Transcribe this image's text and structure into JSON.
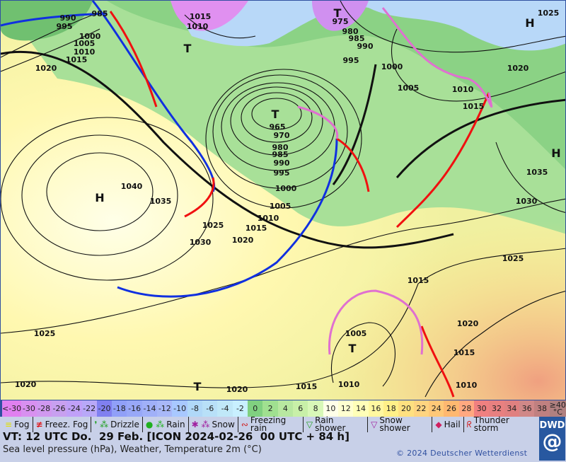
{
  "header": {
    "valid_time": "VT: 12 UTC Do.  29 Feb. [ICON 2024-02-26  00 UTC + 84 h]",
    "subtitle": "Sea level pressure (hPa), Weather, Temperature 2m (°C)",
    "copyright": "© 2024 Deutscher Wetterdienst",
    "logo": "DWD"
  },
  "temperature_scale": [
    {
      "label": "<-30",
      "color": "#e080f0"
    },
    {
      "label": "-30",
      "color": "#d890f0"
    },
    {
      "label": "-28",
      "color": "#d098f0"
    },
    {
      "label": "-26",
      "color": "#c8a0f0"
    },
    {
      "label": "-24",
      "color": "#c0a0f8"
    },
    {
      "label": "-22",
      "color": "#b8a8f8"
    },
    {
      "label": "-20",
      "color": "#8080f0"
    },
    {
      "label": "-18",
      "color": "#90a0f8"
    },
    {
      "label": "-16",
      "color": "#98a8f8"
    },
    {
      "label": "-14",
      "color": "#a0b0f8"
    },
    {
      "label": "-12",
      "color": "#a8b8f8"
    },
    {
      "label": "-10",
      "color": "#a8c8ff"
    },
    {
      "label": "-8",
      "color": "#b0d8f8"
    },
    {
      "label": "-6",
      "color": "#b8e0f8"
    },
    {
      "label": "-4",
      "color": "#c0e8f8"
    },
    {
      "label": "-2",
      "color": "#c8f0ff"
    },
    {
      "label": "0",
      "color": "#80d080"
    },
    {
      "label": "2",
      "color": "#a0e090"
    },
    {
      "label": "4",
      "color": "#b8e8a0"
    },
    {
      "label": "6",
      "color": "#c8f0a8"
    },
    {
      "label": "8",
      "color": "#d8f8b8"
    },
    {
      "label": "10",
      "color": "#ffffe8"
    },
    {
      "label": "12",
      "color": "#ffffd0"
    },
    {
      "label": "14",
      "color": "#ffffb8"
    },
    {
      "label": "16",
      "color": "#fff8a0"
    },
    {
      "label": "18",
      "color": "#fff088"
    },
    {
      "label": "20",
      "color": "#ffe080"
    },
    {
      "label": "22",
      "color": "#ffd480"
    },
    {
      "label": "24",
      "color": "#ffc878"
    },
    {
      "label": "26",
      "color": "#ffb870"
    },
    {
      "label": "28",
      "color": "#ffa880"
    },
    {
      "label": "30",
      "color": "#f08080"
    },
    {
      "label": "32",
      "color": "#e88080"
    },
    {
      "label": "34",
      "color": "#e08080"
    },
    {
      "label": "36",
      "color": "#d08888"
    },
    {
      "label": "38",
      "color": "#c08080"
    },
    {
      "label": "≥40 °C",
      "color": "#b08080"
    }
  ],
  "weather_legend": [
    {
      "label": "Fog",
      "icon": "fog-icon",
      "symbol": "≡",
      "color": "#e0e000"
    },
    {
      "label": "Freez. Fog",
      "icon": "freezing-fog-icon",
      "symbol": "≢",
      "color": "#e00000"
    },
    {
      "label": "Drizzle",
      "icon": "drizzle-icon",
      "symbol": "❜ ⁂",
      "color": "#20a020"
    },
    {
      "label": "Rain",
      "icon": "rain-icon",
      "symbol": "● ⁂",
      "color": "#20b020"
    },
    {
      "label": "Snow",
      "icon": "snow-icon",
      "symbol": "✱ ⁂",
      "color": "#a020a0"
    },
    {
      "label": "Freezing rain",
      "icon": "freezing-rain-icon",
      "symbol": "∾",
      "color": "#d02020"
    },
    {
      "label": "Rain shower",
      "icon": "rain-shower-icon",
      "symbol": "▽",
      "color": "#20a020"
    },
    {
      "label": "Snow shower",
      "icon": "snow-shower-icon",
      "symbol": "▽",
      "color": "#a020a0"
    },
    {
      "label": "Hail",
      "icon": "hail-icon",
      "symbol": "◆",
      "color": "#d02060"
    },
    {
      "label": "Thunder storm",
      "icon": "thunderstorm-icon",
      "symbol": "ᖇ",
      "color": "#d02020"
    }
  ],
  "map": {
    "pressure_labels": [
      "1040",
      "1035",
      "1030",
      "1025",
      "1020",
      "1015",
      "1010",
      "1005",
      "1000",
      "995",
      "990",
      "985",
      "980",
      "970",
      "965",
      "1025",
      "1020",
      "1020",
      "1015",
      "1010",
      "1005",
      "1010",
      "1015",
      "1020",
      "1015",
      "1025",
      "1030",
      "1035",
      "1015",
      "1010",
      "1005",
      "1000",
      "995",
      "990",
      "985",
      "980",
      "975",
      "1020",
      "1025",
      "1015",
      "1010",
      "1020",
      "1015",
      "1010",
      "1005",
      "1000",
      "995",
      "990",
      "985"
    ],
    "high_low_labels": [
      "H",
      "H",
      "H",
      "T",
      "T",
      "T",
      "T",
      "T"
    ],
    "colors": {
      "cold_front": "#1030e0",
      "warm_front": "#f01010",
      "occlusion": "#e070d0"
    }
  }
}
